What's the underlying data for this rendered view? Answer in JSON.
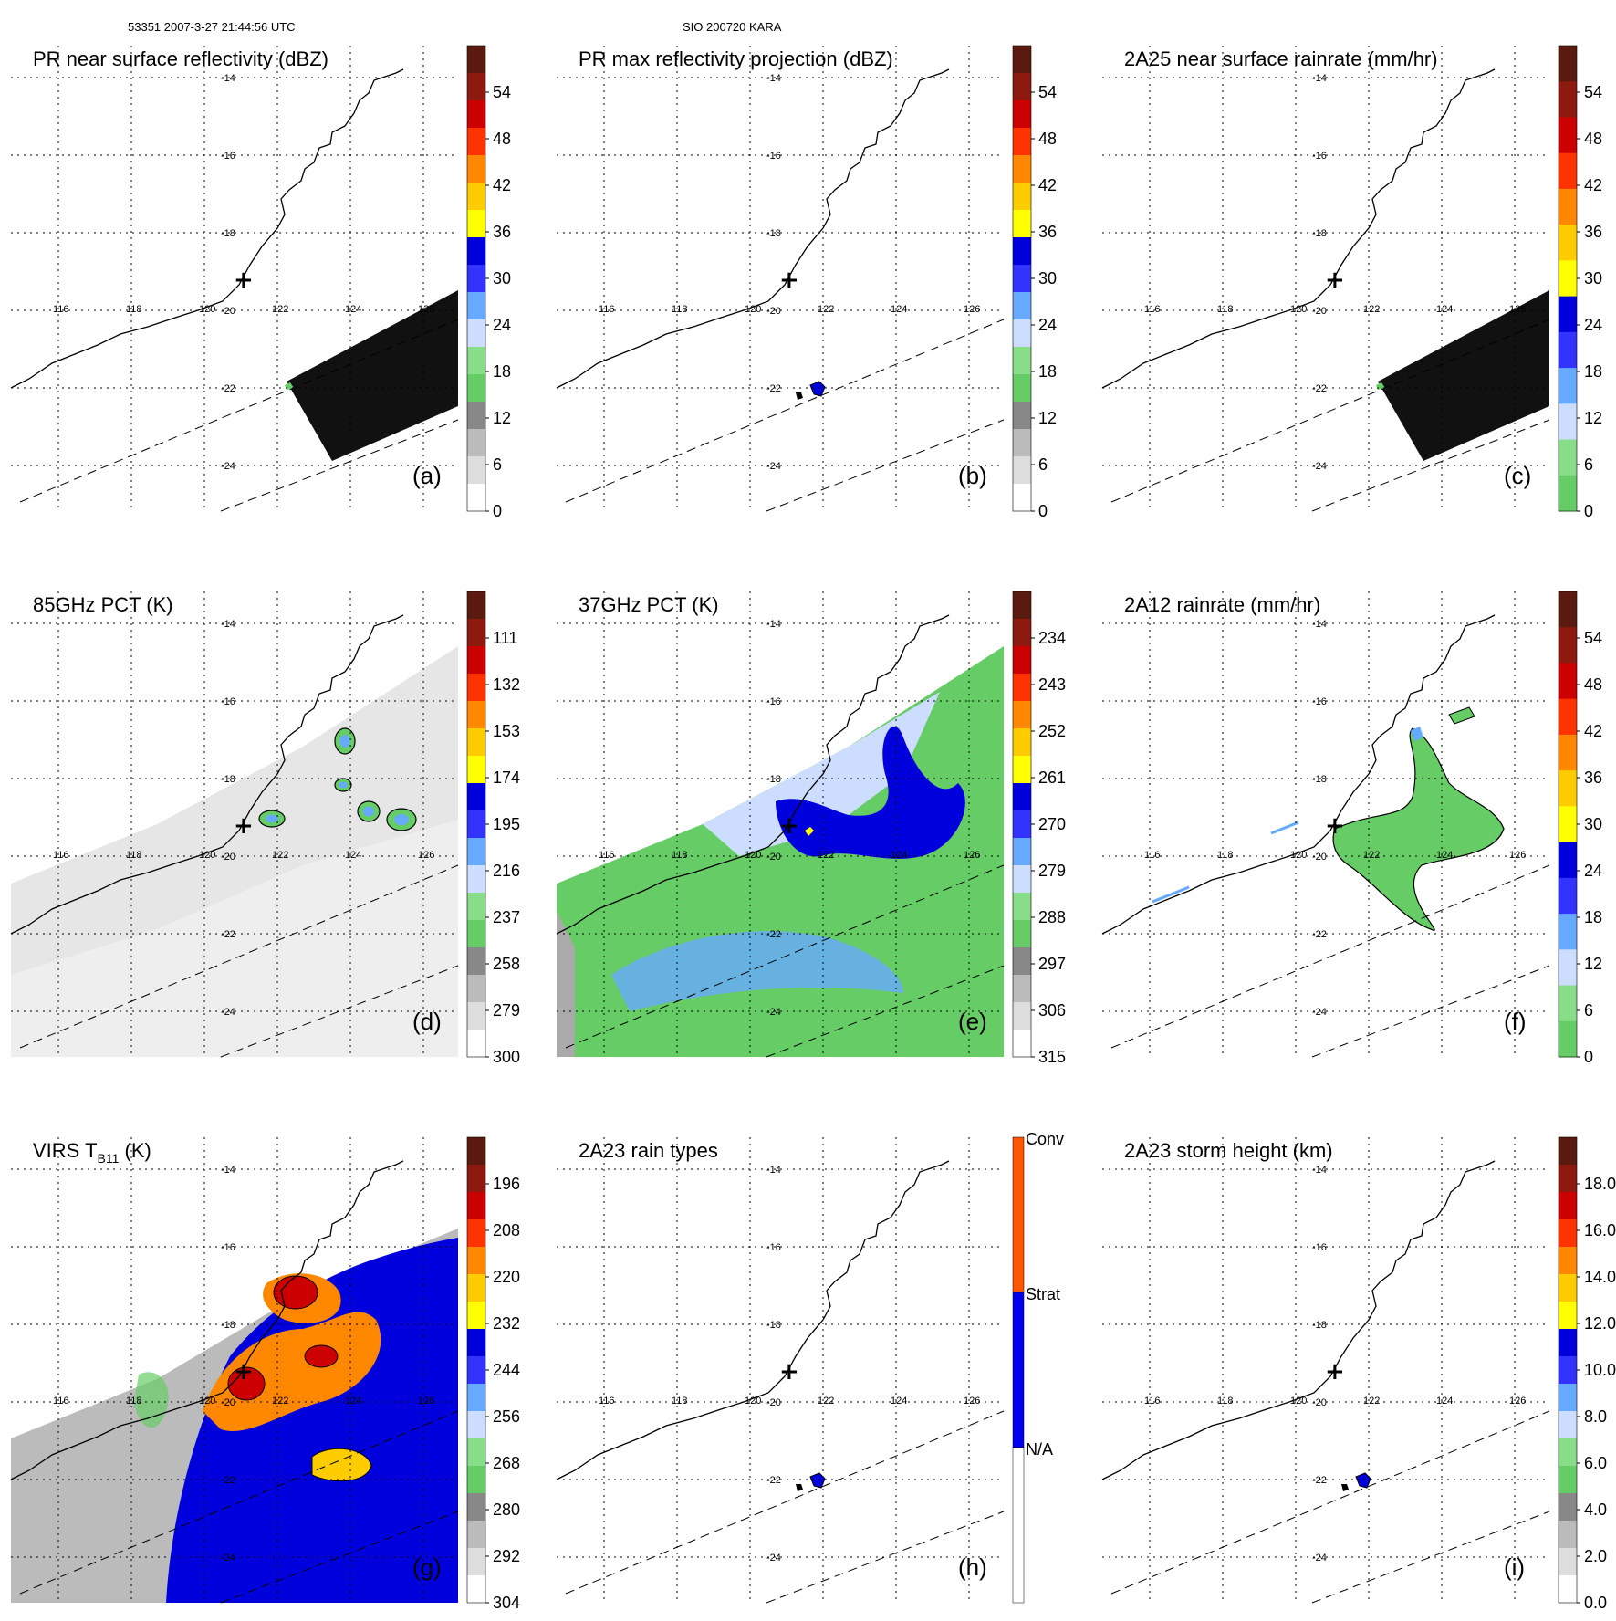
{
  "header": {
    "left": "53351 2007-3-27 21:44:56 UTC",
    "center": "SIO 200720 KARA"
  },
  "chart_data": [
    {
      "type": "heatmap",
      "id": "a",
      "title": "PR near surface reflectivity (dBZ)",
      "letter": "(a)",
      "colorbar": {
        "labels": [
          "54",
          "48",
          "42",
          "36",
          "30",
          "24",
          "18",
          "12",
          "6",
          "0"
        ],
        "colors": [
          "#5a1a10",
          "#8c1a0f",
          "#cc0000",
          "#ff3300",
          "#ff8800",
          "#ffcc00",
          "#ffff00",
          "#0000dd",
          "#3333ff",
          "#66aaff",
          "#ccddff",
          "#88dd88",
          "#66cc66",
          "#888888",
          "#bbbbbb",
          "#dddddd",
          "#ffffff"
        ]
      },
      "swath": "pr_block"
    },
    {
      "type": "heatmap",
      "id": "b",
      "title": "PR max reflectivity projection (dBZ)",
      "letter": "(b)",
      "colorbar": {
        "labels": [
          "54",
          "48",
          "42",
          "36",
          "30",
          "24",
          "18",
          "12",
          "6",
          "0"
        ],
        "colors": [
          "#5a1a10",
          "#8c1a0f",
          "#cc0000",
          "#ff3300",
          "#ff8800",
          "#ffcc00",
          "#ffff00",
          "#0000dd",
          "#3333ff",
          "#66aaff",
          "#ccddff",
          "#88dd88",
          "#66cc66",
          "#888888",
          "#bbbbbb",
          "#dddddd",
          "#ffffff"
        ]
      },
      "swath": "pr_small"
    },
    {
      "type": "heatmap",
      "id": "c",
      "title": "2A25 near surface rainrate (mm/hr)",
      "letter": "(c)",
      "colorbar": {
        "labels": [
          "54",
          "48",
          "42",
          "36",
          "30",
          "24",
          "18",
          "12",
          "6",
          "0"
        ],
        "colors": [
          "#5a1a10",
          "#8c1a0f",
          "#cc0000",
          "#ff3300",
          "#ff8800",
          "#ffcc00",
          "#ffff00",
          "#0000dd",
          "#3333ff",
          "#66aaff",
          "#ccddff",
          "#88dd88",
          "#66cc66"
        ]
      },
      "swath": "pr_block"
    },
    {
      "type": "heatmap",
      "id": "d",
      "title": "85GHz PCT (K)",
      "letter": "(d)",
      "colorbar": {
        "labels": [
          "111",
          "132",
          "153",
          "174",
          "195",
          "216",
          "237",
          "258",
          "279",
          "300"
        ],
        "colors": [
          "#5a1a10",
          "#8c1a0f",
          "#cc0000",
          "#ff3300",
          "#ff8800",
          "#ffcc00",
          "#ffff00",
          "#0000dd",
          "#3333ff",
          "#66aaff",
          "#ccddff",
          "#88dd88",
          "#66cc66",
          "#888888",
          "#bbbbbb",
          "#dddddd",
          "#ffffff"
        ]
      },
      "swath": "tmi_gray"
    },
    {
      "type": "heatmap",
      "id": "e",
      "title": "37GHz PCT (K)",
      "letter": "(e)",
      "colorbar": {
        "labels": [
          "234",
          "243",
          "252",
          "261",
          "270",
          "279",
          "288",
          "297",
          "306",
          "315"
        ],
        "colors": [
          "#5a1a10",
          "#8c1a0f",
          "#cc0000",
          "#ff3300",
          "#ff8800",
          "#ffcc00",
          "#ffff00",
          "#0000dd",
          "#3333ff",
          "#66aaff",
          "#ccddff",
          "#88dd88",
          "#66cc66",
          "#888888",
          "#bbbbbb",
          "#dddddd",
          "#ffffff"
        ]
      },
      "swath": "tmi_green"
    },
    {
      "type": "heatmap",
      "id": "f",
      "title": "2A12 rainrate (mm/hr)",
      "letter": "(f)",
      "colorbar": {
        "labels": [
          "54",
          "48",
          "42",
          "36",
          "30",
          "24",
          "18",
          "12",
          "6",
          "0"
        ],
        "colors": [
          "#5a1a10",
          "#8c1a0f",
          "#cc0000",
          "#ff3300",
          "#ff8800",
          "#ffcc00",
          "#ffff00",
          "#0000dd",
          "#3333ff",
          "#66aaff",
          "#ccddff",
          "#88dd88",
          "#66cc66"
        ]
      },
      "swath": "tmi_rain"
    },
    {
      "type": "heatmap",
      "id": "g",
      "title": "VIRS T",
      "title_sub": "B11",
      "title_suffix": " (K)",
      "letter": "(g)",
      "colorbar": {
        "labels": [
          "196",
          "208",
          "220",
          "232",
          "244",
          "256",
          "268",
          "280",
          "292",
          "304"
        ],
        "colors": [
          "#5a1a10",
          "#8c1a0f",
          "#cc0000",
          "#ff3300",
          "#ff8800",
          "#ffcc00",
          "#ffff00",
          "#0000dd",
          "#3333ff",
          "#66aaff",
          "#ccddff",
          "#88dd88",
          "#66cc66",
          "#888888",
          "#bbbbbb",
          "#dddddd",
          "#ffffff"
        ]
      },
      "swath": "virs"
    },
    {
      "type": "heatmap",
      "id": "h",
      "title": "2A23 rain types",
      "letter": "(h)",
      "colorbar": {
        "labels": [
          "Conv",
          "Strat",
          "N/A"
        ],
        "categorical": true,
        "colors": [
          "#ff5500",
          "#0000ee",
          "#ffffff"
        ]
      },
      "swath": "pr_small"
    },
    {
      "type": "heatmap",
      "id": "i",
      "title": "2A23 storm height (km)",
      "letter": "(i)",
      "colorbar": {
        "labels": [
          "18.0",
          "16.0",
          "14.0",
          "12.0",
          "10.0",
          "8.0",
          "6.0",
          "4.0",
          "2.0",
          "0.0"
        ],
        "colors": [
          "#5a1a10",
          "#8c1a0f",
          "#cc0000",
          "#ff3300",
          "#ff8800",
          "#ffcc00",
          "#ffff00",
          "#0000dd",
          "#3333ff",
          "#66aaff",
          "#ccddff",
          "#88dd88",
          "#66cc66",
          "#888888",
          "#bbbbbb",
          "#dddddd",
          "#ffffff"
        ]
      },
      "swath": "pr_small"
    }
  ],
  "map": {
    "lon_ticks": [
      "116",
      "118",
      "120",
      "122",
      "124",
      "126"
    ],
    "lat_ticks": [
      "-14",
      "-16",
      "-18",
      "-20",
      "-22",
      "-24"
    ],
    "marker": "+"
  }
}
